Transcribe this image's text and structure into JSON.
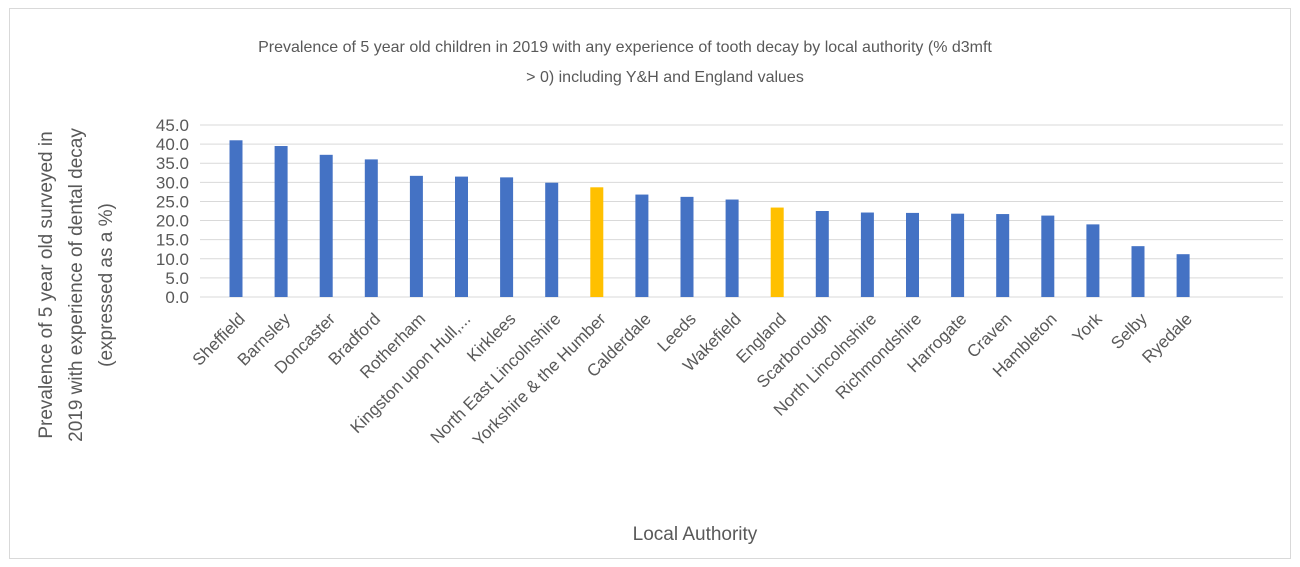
{
  "chart_data": {
    "type": "bar",
    "title_line1": "Prevalence of 5 year old children in 2019 with any experience of tooth decay by local authority (% d3mft",
    "title_line2": "> 0) including Y&H and England values",
    "ylabel_lines": [
      "Prevalence of 5 year old surveyed in",
      "2019 with experience of dental decay",
      "(expressed as a %)"
    ],
    "xlabel": "Local Authority",
    "ylim": [
      0,
      45
    ],
    "ytick_step": 5,
    "ytick_labels": [
      "0.0",
      "5.0",
      "10.0",
      "15.0",
      "20.0",
      "25.0",
      "30.0",
      "35.0",
      "40.0",
      "45.0"
    ],
    "grid": true,
    "legend": "none",
    "categories": [
      "Sheffield",
      "Barnsley",
      "Doncaster",
      "Bradford",
      "Rotherham",
      "Kingston upon Hull,...",
      "Kirklees",
      "North East Lincolnshire",
      "Yorkshire & the Humber",
      "Calderdale",
      "Leeds",
      "Wakefield",
      "England",
      "Scarborough",
      "North Lincolnshire",
      "Richmondshire",
      "Harrogate",
      "Craven",
      "Hambleton",
      "York",
      "Selby",
      "Ryedale"
    ],
    "values": [
      41.0,
      39.5,
      37.2,
      36.0,
      31.7,
      31.5,
      31.3,
      29.9,
      28.7,
      26.8,
      26.2,
      25.5,
      23.4,
      22.5,
      22.1,
      22.0,
      21.8,
      21.7,
      21.3,
      19.0,
      13.3,
      11.2
    ],
    "colors": {
      "default": "#4472c4",
      "highlight": "#ffc000",
      "highlight_categories": [
        "Yorkshire & the Humber",
        "England"
      ],
      "gridline": "#d9d9d9",
      "text": "#595959"
    }
  }
}
